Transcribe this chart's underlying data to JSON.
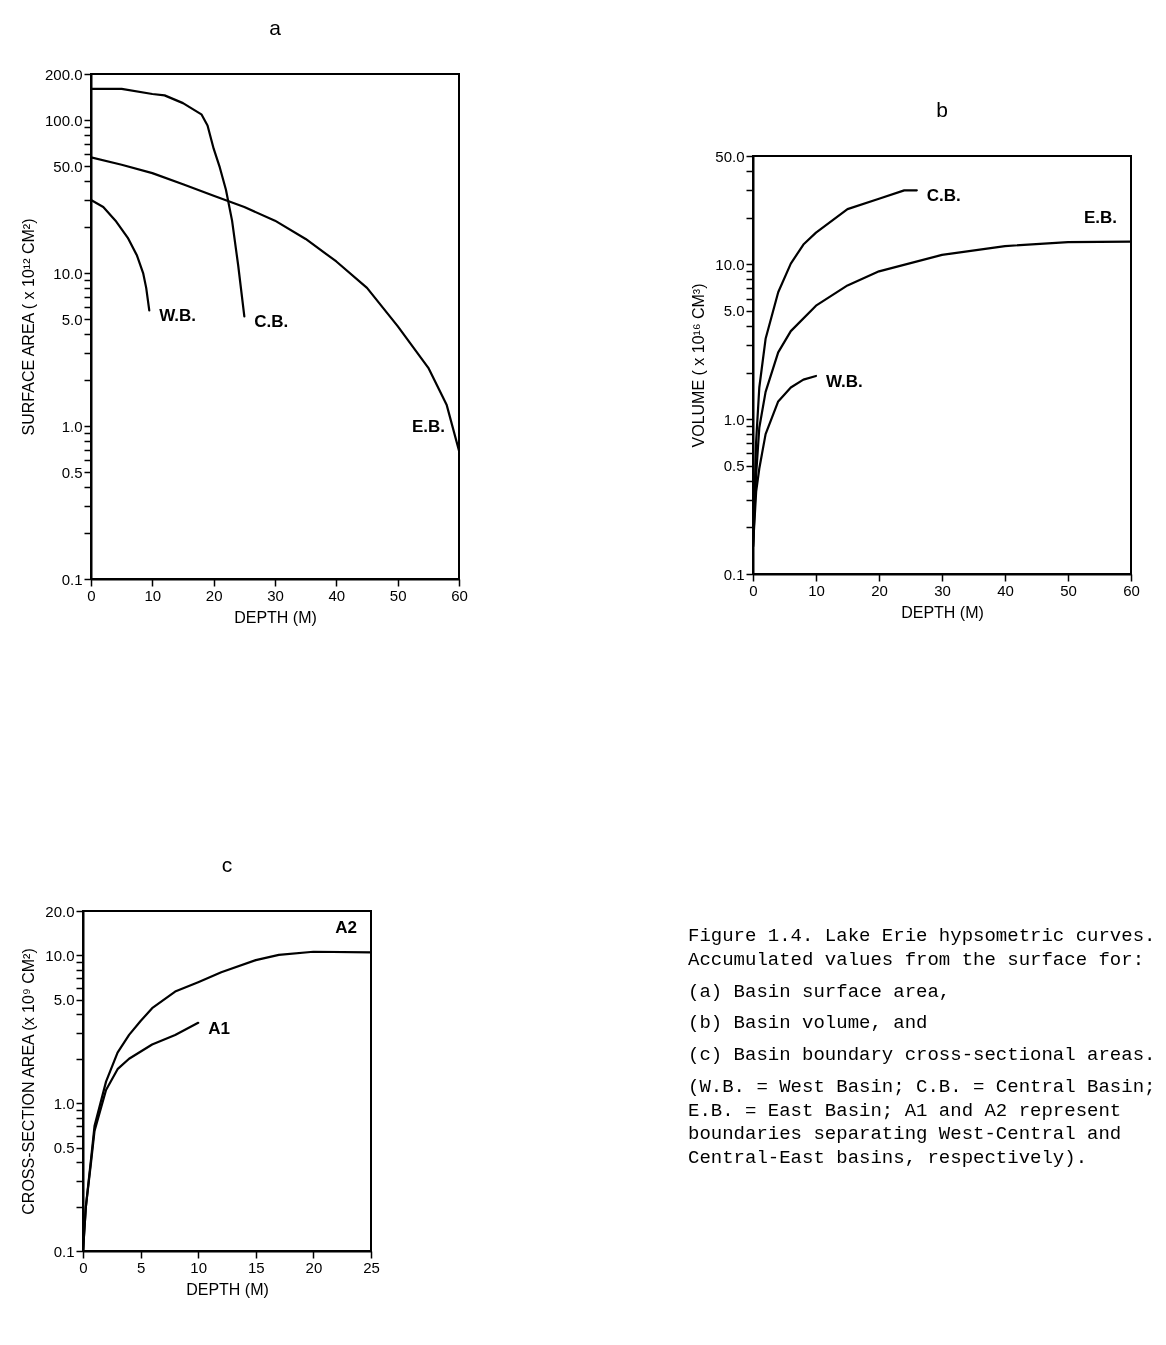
{
  "chart_data": [
    {
      "type": "line",
      "title": "a",
      "xlabel": "DEPTH (M)",
      "ylabel": "SURFACE AREA ( x 10¹² CM²)",
      "log": "y",
      "xlim": [
        0,
        60
      ],
      "xticks": [
        0,
        10,
        20,
        30,
        40,
        50,
        60
      ],
      "ylim": [
        0.1,
        200
      ],
      "yticks": [
        {
          "value": 0.1,
          "label": "0.1"
        },
        {
          "value": 0.2,
          "label": null
        },
        {
          "value": 0.3,
          "label": null
        },
        {
          "value": 0.4,
          "label": null
        },
        {
          "value": 0.5,
          "label": "0.5"
        },
        {
          "value": 0.6,
          "label": null
        },
        {
          "value": 0.7,
          "label": null
        },
        {
          "value": 0.8,
          "label": null
        },
        {
          "value": 0.9,
          "label": null
        },
        {
          "value": 1,
          "label": "1.0"
        },
        {
          "value": 2,
          "label": null
        },
        {
          "value": 3,
          "label": null
        },
        {
          "value": 4,
          "label": null
        },
        {
          "value": 5,
          "label": "5.0"
        },
        {
          "value": 6,
          "label": null
        },
        {
          "value": 7,
          "label": null
        },
        {
          "value": 8,
          "label": null
        },
        {
          "value": 9,
          "label": null
        },
        {
          "value": 10,
          "label": "10.0"
        },
        {
          "value": 20,
          "label": null
        },
        {
          "value": 30,
          "label": null
        },
        {
          "value": 40,
          "label": null
        },
        {
          "value": 50,
          "label": "50.0"
        },
        {
          "value": 60,
          "label": null
        },
        {
          "value": 70,
          "label": null
        },
        {
          "value": 80,
          "label": null
        },
        {
          "value": 90,
          "label": null
        },
        {
          "value": 100,
          "label": "100.0"
        },
        {
          "value": 200,
          "label": "200.0"
        }
      ],
      "series": [
        {
          "name": "W.B.",
          "color": "#000000",
          "x": [
            0,
            2,
            4,
            6,
            7.5,
            8.5,
            9,
            9.5
          ],
          "values": [
            30,
            27,
            22,
            17,
            13,
            10,
            8,
            5.7
          ]
        },
        {
          "name": "C.B.",
          "color": "#000000",
          "x": [
            0,
            5,
            10,
            12,
            15,
            18,
            19,
            20,
            21,
            22,
            23,
            24,
            25
          ],
          "values": [
            160,
            160,
            148,
            145,
            129,
            109,
            92,
            65,
            49,
            35,
            22,
            11.2,
            5.2
          ]
        },
        {
          "name": "E.B.",
          "color": "#000000",
          "x": [
            0,
            5,
            10,
            15,
            20,
            25,
            30,
            35,
            40,
            45,
            50,
            55,
            58,
            60
          ],
          "values": [
            57,
            51,
            45,
            38,
            32,
            27,
            22,
            16.7,
            11.9,
            8,
            4.5,
            2.4,
            1.37,
            0.69
          ]
        }
      ]
    },
    {
      "type": "line",
      "title": "b",
      "xlabel": "DEPTH (M)",
      "ylabel": "VOLUME ( x 10¹⁶ CM³)",
      "log": "y",
      "xlim": [
        0,
        60
      ],
      "xticks": [
        0,
        10,
        20,
        30,
        40,
        50,
        60
      ],
      "ylim": [
        0.1,
        50
      ],
      "yticks": [
        {
          "value": 0.1,
          "label": "0.1"
        },
        {
          "value": 0.2,
          "label": null
        },
        {
          "value": 0.3,
          "label": null
        },
        {
          "value": 0.4,
          "label": null
        },
        {
          "value": 0.5,
          "label": "0.5"
        },
        {
          "value": 0.6,
          "label": null
        },
        {
          "value": 0.7,
          "label": null
        },
        {
          "value": 0.8,
          "label": null
        },
        {
          "value": 0.9,
          "label": null
        },
        {
          "value": 1,
          "label": "1.0"
        },
        {
          "value": 2,
          "label": null
        },
        {
          "value": 3,
          "label": null
        },
        {
          "value": 4,
          "label": null
        },
        {
          "value": 5,
          "label": "5.0"
        },
        {
          "value": 6,
          "label": null
        },
        {
          "value": 7,
          "label": null
        },
        {
          "value": 8,
          "label": null
        },
        {
          "value": 9,
          "label": null
        },
        {
          "value": 10,
          "label": "10.0"
        },
        {
          "value": 20,
          "label": null
        },
        {
          "value": 30,
          "label": null
        },
        {
          "value": 40,
          "label": null
        },
        {
          "value": 50,
          "label": "50.0"
        }
      ],
      "series": [
        {
          "name": "C.B.",
          "color": "#000000",
          "x": [
            0,
            0.5,
            1,
            2,
            4,
            6,
            8,
            10,
            15,
            20,
            24,
            26
          ],
          "values": [
            0.15,
            0.72,
            1.6,
            3.3,
            6.6,
            10.1,
            13.4,
            16,
            22.7,
            26.5,
            30,
            30
          ]
        },
        {
          "name": "E.B.",
          "color": "#000000",
          "x": [
            0,
            0.5,
            1,
            2,
            4,
            6,
            10,
            15,
            20,
            30,
            40,
            50,
            60
          ],
          "values": [
            0.15,
            0.44,
            0.88,
            1.5,
            2.7,
            3.7,
            5.4,
            7.3,
            9,
            11.5,
            13.1,
            13.9,
            14
          ]
        },
        {
          "name": "W.B.",
          "color": "#000000",
          "x": [
            0,
            0.5,
            1,
            2,
            4,
            6,
            8,
            10
          ],
          "values": [
            0.15,
            0.34,
            0.48,
            0.8,
            1.3,
            1.6,
            1.8,
            1.9
          ]
        }
      ]
    },
    {
      "type": "line",
      "title": "c",
      "xlabel": "DEPTH (M)",
      "ylabel": "CROSS-SECTION AREA (x 10⁹ CM²)",
      "log": "y",
      "xlim": [
        0,
        25
      ],
      "xticks": [
        0,
        5,
        10,
        15,
        20,
        25
      ],
      "ylim": [
        0.1,
        20
      ],
      "yticks": [
        {
          "value": 0.1,
          "label": "0.1"
        },
        {
          "value": 0.2,
          "label": null
        },
        {
          "value": 0.3,
          "label": null
        },
        {
          "value": 0.4,
          "label": null
        },
        {
          "value": 0.5,
          "label": "0.5"
        },
        {
          "value": 0.6,
          "label": null
        },
        {
          "value": 0.7,
          "label": null
        },
        {
          "value": 0.8,
          "label": null
        },
        {
          "value": 0.9,
          "label": null
        },
        {
          "value": 1,
          "label": "1.0"
        },
        {
          "value": 2,
          "label": null
        },
        {
          "value": 3,
          "label": null
        },
        {
          "value": 4,
          "label": null
        },
        {
          "value": 5,
          "label": "5.0"
        },
        {
          "value": 6,
          "label": null
        },
        {
          "value": 7,
          "label": null
        },
        {
          "value": 8,
          "label": null
        },
        {
          "value": 9,
          "label": null
        },
        {
          "value": 10,
          "label": "10.0"
        },
        {
          "value": 20,
          "label": "20.0"
        }
      ],
      "series": [
        {
          "name": "A2",
          "color": "#000000",
          "x": [
            0,
            0.25,
            0.7,
            1,
            2,
            3,
            4,
            5,
            6,
            8,
            10,
            12,
            15,
            17,
            20,
            25
          ],
          "values": [
            0.1,
            0.2,
            0.42,
            0.7,
            1.4,
            2.2,
            2.9,
            3.6,
            4.4,
            5.7,
            6.6,
            7.7,
            9.3,
            10.1,
            10.6,
            10.5
          ]
        },
        {
          "name": "A1",
          "color": "#000000",
          "x": [
            0,
            0.25,
            0.7,
            1,
            2,
            3,
            4,
            6,
            8,
            10
          ],
          "values": [
            0.1,
            0.2,
            0.4,
            0.65,
            1.23,
            1.7,
            2,
            2.5,
            2.9,
            3.5
          ]
        }
      ],
      "annotations": [
        "Figure 1.4.  Lake Erie hypsometric curves.  Accumulated values from the surface for:",
        "(a) Basin surface area,",
        "(b) Basin volume, and",
        "(c) Basin boundary cross-sectional areas.",
        "(W.B. = West Basin; C.B. = Central Basin; E.B. = East Basin; A1 and A2 represent boundaries separating West-Central and Central-East basins, respectively)."
      ]
    }
  ]
}
